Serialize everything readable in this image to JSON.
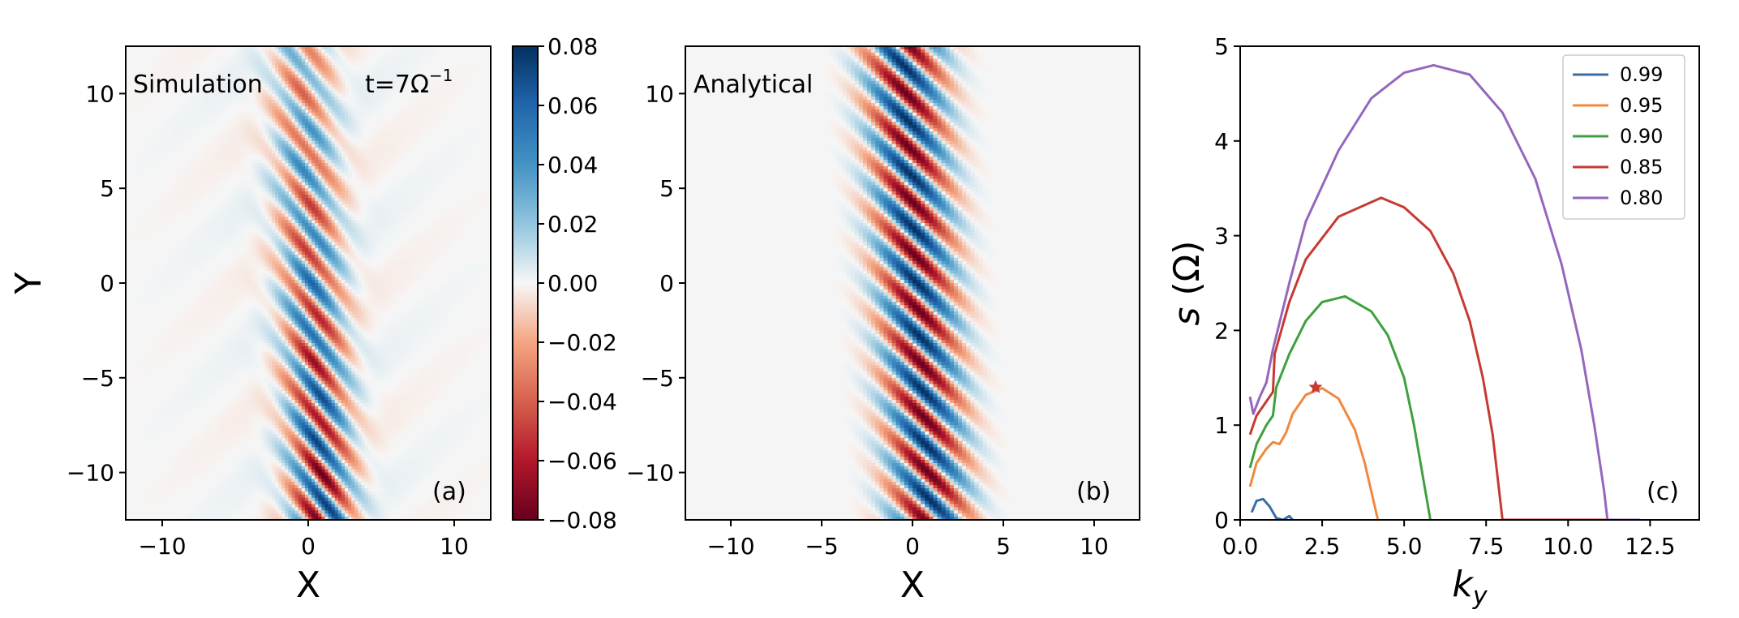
{
  "figure": {
    "panels": [
      {
        "id": "a",
        "label": "(a)",
        "title": "Simulation",
        "annotation_prefix": "t=7Ω",
        "annotation_exp": "−1",
        "xlabel": "X",
        "ylabel": "Y",
        "xticks": [
          "−10",
          "0",
          "10"
        ],
        "yticks": [
          "10",
          "5",
          "0",
          "−5",
          "−10"
        ]
      },
      {
        "id": "b",
        "label": "(b)",
        "title": "Analytical",
        "xlabel": "X",
        "xticks": [
          "−10",
          "−5",
          "0",
          "5",
          "10"
        ],
        "yticks": [
          "10",
          "5",
          "0",
          "−5",
          "−10"
        ]
      },
      {
        "id": "c",
        "label": "(c)",
        "xlabel_main": "k",
        "xlabel_sub": "y",
        "ylabel_main": "s",
        "ylabel_unit": "(Ω)",
        "xticks": [
          "0.0",
          "2.5",
          "5.0",
          "7.5",
          "10.0",
          "12.5"
        ],
        "yticks": [
          "0",
          "1",
          "2",
          "3",
          "4",
          "5"
        ]
      }
    ],
    "colorbar": {
      "ticks": [
        "0.08",
        "0.06",
        "0.04",
        "0.02",
        "0.00",
        "−0.02",
        "−0.04",
        "−0.06",
        "−0.08"
      ],
      "colormap": "RdBu"
    }
  },
  "chart_data": [
    {
      "type": "heatmap",
      "title": "Simulation",
      "annotation": "t=7Ω⁻¹",
      "xlabel": "X",
      "ylabel": "Y",
      "xlim": [
        -12.5,
        12.5
      ],
      "ylim": [
        -12.5,
        12.5
      ],
      "clim": [
        -0.08,
        0.08
      ],
      "colormap": "RdBu",
      "description_values": {
        "band_center_x": [
          1.0,
          -0.5
        ],
        "band_center_at_y": [
          -12.5,
          12.5
        ],
        "band_half_width": 2.2,
        "wavenumber_y": 2.2,
        "peak_amplitude_bottom": 0.08,
        "peak_amplitude_top": 0.03
      }
    },
    {
      "type": "heatmap",
      "title": "Analytical",
      "xlabel": "X",
      "xlim": [
        -12.5,
        12.5
      ],
      "ylim": [
        -12.5,
        12.5
      ],
      "clim": [
        -0.08,
        0.08
      ],
      "colormap": "RdBu",
      "description_values": {
        "band_center_x": [
          1.0,
          -0.5
        ],
        "band_center_at_y": [
          -12.5,
          12.5
        ],
        "band_half_width": 2.2,
        "wavenumber_y": 2.2,
        "peak_amplitude": 0.08
      }
    },
    {
      "type": "line",
      "xlabel": "k_y",
      "ylabel": "s (Ω)",
      "xlim": [
        0,
        14
      ],
      "ylim": [
        0,
        5
      ],
      "legend_position": "top-right",
      "series": [
        {
          "name": "0.99",
          "color": "#3a6ea5",
          "x": [
            0.35,
            0.5,
            0.7,
            0.9,
            1.1,
            1.3,
            1.5,
            1.6
          ],
          "y": [
            0.08,
            0.2,
            0.22,
            0.14,
            0.02,
            0.0,
            0.04,
            0.0
          ]
        },
        {
          "name": "0.95",
          "color": "#f0883e",
          "x": [
            0.3,
            0.5,
            0.8,
            1.0,
            1.2,
            1.4,
            1.6,
            2.0,
            2.5,
            3.0,
            3.5,
            3.8,
            4.0,
            4.2
          ],
          "y": [
            0.35,
            0.6,
            0.75,
            0.82,
            0.8,
            0.92,
            1.12,
            1.32,
            1.39,
            1.28,
            0.95,
            0.6,
            0.3,
            0.0
          ]
        },
        {
          "name": "0.90",
          "color": "#3ea03e",
          "x": [
            0.3,
            0.5,
            0.8,
            1.0,
            1.1,
            1.5,
            2.0,
            2.5,
            3.2,
            4.0,
            4.5,
            5.0,
            5.3,
            5.6,
            5.8
          ],
          "y": [
            0.55,
            0.8,
            1.0,
            1.1,
            1.4,
            1.75,
            2.1,
            2.3,
            2.36,
            2.2,
            1.95,
            1.5,
            1.0,
            0.4,
            0.0
          ]
        },
        {
          "name": "0.85",
          "color": "#c63a32",
          "x": [
            0.3,
            0.5,
            0.8,
            1.0,
            1.05,
            1.5,
            2.0,
            3.0,
            4.3,
            5.0,
            5.8,
            6.5,
            7.0,
            7.4,
            7.7,
            7.9,
            8.0,
            8.5,
            11.2
          ],
          "y": [
            0.9,
            1.1,
            1.25,
            1.35,
            1.75,
            2.3,
            2.75,
            3.2,
            3.4,
            3.3,
            3.05,
            2.6,
            2.1,
            1.5,
            0.9,
            0.3,
            0.0,
            0.0,
            0.0
          ]
        },
        {
          "name": "0.80",
          "color": "#9467bd",
          "x": [
            0.3,
            0.4,
            0.6,
            0.8,
            1.0,
            1.5,
            2.0,
            3.0,
            4.0,
            5.0,
            5.9,
            7.0,
            8.0,
            9.0,
            9.8,
            10.4,
            10.8,
            11.1,
            11.2,
            12.2
          ],
          "y": [
            1.3,
            1.12,
            1.3,
            1.45,
            1.8,
            2.5,
            3.15,
            3.9,
            4.45,
            4.72,
            4.8,
            4.7,
            4.3,
            3.6,
            2.7,
            1.8,
            1.0,
            0.3,
            0.0,
            0.0
          ]
        }
      ],
      "markers": [
        {
          "shape": "star",
          "x": 2.3,
          "y": 1.4,
          "color": "#c63a32"
        }
      ]
    }
  ]
}
